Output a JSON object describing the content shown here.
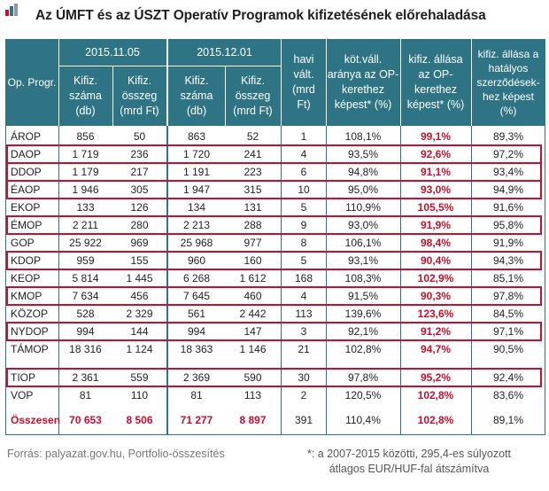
{
  "title": "Az ÚMFT és az ÚSZT Operatív Programok kifizetésének előrehaladása",
  "header": {
    "op_progr": "Op. Progr.",
    "date1": "2015.11.05",
    "date2": "2015.12.01",
    "kifiz_szama": "Kifiz.\nszáma\n(db)",
    "kifiz_osszeg": "Kifiz.\nösszeg\n(mrd Ft)",
    "havi_valt": "havi\nvált.\n(mrd\nFt)",
    "kotvall": "köt.váll.\naránya az OP-\nkerethez\nképest* (%)",
    "kifiz_allasa": "kifiz. állása\naz OP-\nkerethez\nképest* (%)",
    "kifiz_hatalyos": "kifiz. állása a\nhatályos\nszerződések-\nhez képest\n(%)"
  },
  "rows": [
    {
      "name": "ÁROP",
      "db1": "856",
      "mrd1": "50",
      "db2": "863",
      "mrd2": "52",
      "havi": "1",
      "kot": "108,1%",
      "kifiz": "99,1%",
      "hat": "89,3%",
      "boxed": false
    },
    {
      "name": "DAOP",
      "db1": "1 719",
      "mrd1": "236",
      "db2": "1 720",
      "mrd2": "241",
      "havi": "4",
      "kot": "93,5%",
      "kifiz": "92,6%",
      "hat": "97,2%",
      "boxed": true
    },
    {
      "name": "DDOP",
      "db1": "1 179",
      "mrd1": "217",
      "db2": "1 191",
      "mrd2": "223",
      "havi": "6",
      "kot": "94,8%",
      "kifiz": "91,1%",
      "hat": "93,4%",
      "boxed": true
    },
    {
      "name": "ÉAOP",
      "db1": "1 946",
      "mrd1": "305",
      "db2": "1 947",
      "mrd2": "315",
      "havi": "10",
      "kot": "95,0%",
      "kifiz": "93,0%",
      "hat": "94,9%",
      "boxed": true
    },
    {
      "name": "EKOP",
      "db1": "133",
      "mrd1": "126",
      "db2": "134",
      "mrd2": "131",
      "havi": "5",
      "kot": "110,9%",
      "kifiz": "105,5%",
      "hat": "91,6%",
      "boxed": false
    },
    {
      "name": "ÉMOP",
      "db1": "2 211",
      "mrd1": "280",
      "db2": "2 213",
      "mrd2": "288",
      "havi": "9",
      "kot": "93,0%",
      "kifiz": "91,9%",
      "hat": "95,8%",
      "boxed": true
    },
    {
      "name": "GOP",
      "db1": "25 922",
      "mrd1": "969",
      "db2": "25 968",
      "mrd2": "977",
      "havi": "8",
      "kot": "106,1%",
      "kifiz": "98,4%",
      "hat": "91,9%",
      "boxed": false
    },
    {
      "name": "KDOP",
      "db1": "959",
      "mrd1": "155",
      "db2": "960",
      "mrd2": "160",
      "havi": "5",
      "kot": "93,1%",
      "kifiz": "90,4%",
      "hat": "94,3%",
      "boxed": true
    },
    {
      "name": "KEOP",
      "db1": "5 814",
      "mrd1": "1 445",
      "db2": "6 268",
      "mrd2": "1 612",
      "havi": "168",
      "kot": "108,3%",
      "kifiz": "102,9%",
      "hat": "85,1%",
      "boxed": false
    },
    {
      "name": "KMOP",
      "db1": "7 634",
      "mrd1": "456",
      "db2": "7 645",
      "mrd2": "460",
      "havi": "4",
      "kot": "91,5%",
      "kifiz": "90,3%",
      "hat": "97,8%",
      "boxed": true
    },
    {
      "name": "KÖZOP",
      "db1": "528",
      "mrd1": "2 329",
      "db2": "561",
      "mrd2": "2 442",
      "havi": "113",
      "kot": "139,6%",
      "kifiz": "123,6%",
      "hat": "84,5%",
      "boxed": false
    },
    {
      "name": "NYDOP",
      "db1": "994",
      "mrd1": "144",
      "db2": "994",
      "mrd2": "147",
      "havi": "3",
      "kot": "92,1%",
      "kifiz": "91,2%",
      "hat": "97,1%",
      "boxed": true
    },
    {
      "name": "TÁMOP",
      "db1": "18 316",
      "mrd1": "1 124",
      "db2": "18 363",
      "mrd2": "1 146",
      "havi": "21",
      "kot": "102,8%",
      "kifiz": "94,7%",
      "hat": "90,5%",
      "boxed": false
    },
    {
      "name": "TIOP",
      "db1": "2 361",
      "mrd1": "559",
      "db2": "2 369",
      "mrd2": "590",
      "havi": "30",
      "kot": "97,8%",
      "kifiz": "95,2%",
      "hat": "92,4%",
      "boxed": true
    },
    {
      "name": "VOP",
      "db1": "81",
      "mrd1": "110",
      "db2": "81",
      "mrd2": "113",
      "havi": "2",
      "kot": "120,5%",
      "kifiz": "102,8%",
      "hat": "83,6%",
      "boxed": false
    }
  ],
  "total": {
    "name": "Összesen",
    "db1": "70 653",
    "mrd1": "8 506",
    "db2": "71 277",
    "mrd2": "8 897",
    "havi": "391",
    "kot": "110,4%",
    "kifiz": "102,8%",
    "hat": "89,1%"
  },
  "footer": {
    "source": "Forrás:  palyazat.gov.hu, Portfolio-összesítés",
    "note": "*: a 2007-2015  közötti, 295,4-es súlyozott\nátlagos EUR/HUF-fal átszámítva"
  },
  "colors": {
    "header_bg": "#2f7485",
    "accent_red": "#c8102e"
  }
}
